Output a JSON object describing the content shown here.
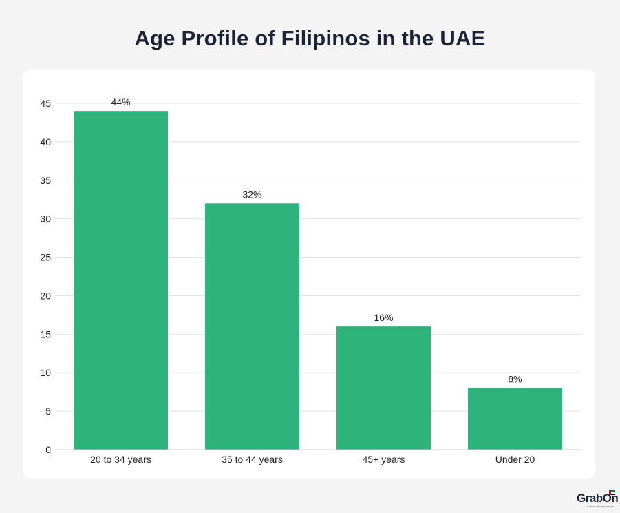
{
  "page": {
    "title": "Age Profile of Filipinos in the UAE"
  },
  "chart_data": {
    "type": "bar",
    "title": "Age Profile of Filipinos in the UAE",
    "categories": [
      "20 to 34 years",
      "35 to 44 years",
      "45+ years",
      "Under 20"
    ],
    "values": [
      44,
      32,
      16,
      8
    ],
    "data_labels": [
      "44%",
      "32%",
      "16%",
      "8%"
    ],
    "xlabel": "",
    "ylabel": "",
    "ylim": [
      0,
      45
    ],
    "yticks": [
      0,
      5,
      10,
      15,
      20,
      25,
      30,
      35,
      40,
      45
    ],
    "grid": true,
    "legend": "none",
    "bar_color": "#2eb37d"
  },
  "logo": {
    "text": "GrabOn",
    "tagline": "YOUR SAVINGS PARTNER"
  },
  "colors": {
    "background": "#f4f4f5",
    "card": "#ffffff",
    "title": "#1b2336",
    "grid": "#e2e2e2"
  }
}
